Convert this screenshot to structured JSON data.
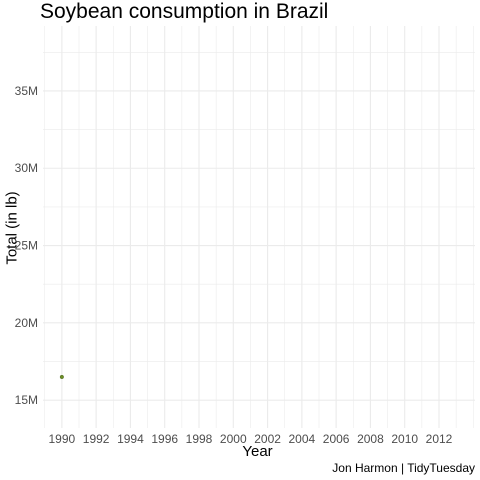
{
  "chart_data": {
    "type": "scatter",
    "title": "Soybean consumption in Brazil",
    "xlabel": "Year",
    "ylabel": "Total (in lb)",
    "caption": "Jon Harmon | TidyTuesday",
    "xlim": [
      1988.9,
      2014.1
    ],
    "ylim": [
      13200000,
      39200000
    ],
    "x_ticks": [
      1990,
      1992,
      1994,
      1996,
      1998,
      2000,
      2002,
      2004,
      2006,
      2008,
      2010,
      2012
    ],
    "y_ticks": [
      15000000,
      20000000,
      25000000,
      30000000,
      35000000
    ],
    "y_tick_labels": [
      "15M",
      "20M",
      "25M",
      "30M",
      "35M"
    ],
    "grid": true,
    "points": [
      {
        "x": 1990,
        "y": 16500000
      }
    ],
    "point_color": "#6b8e23"
  }
}
